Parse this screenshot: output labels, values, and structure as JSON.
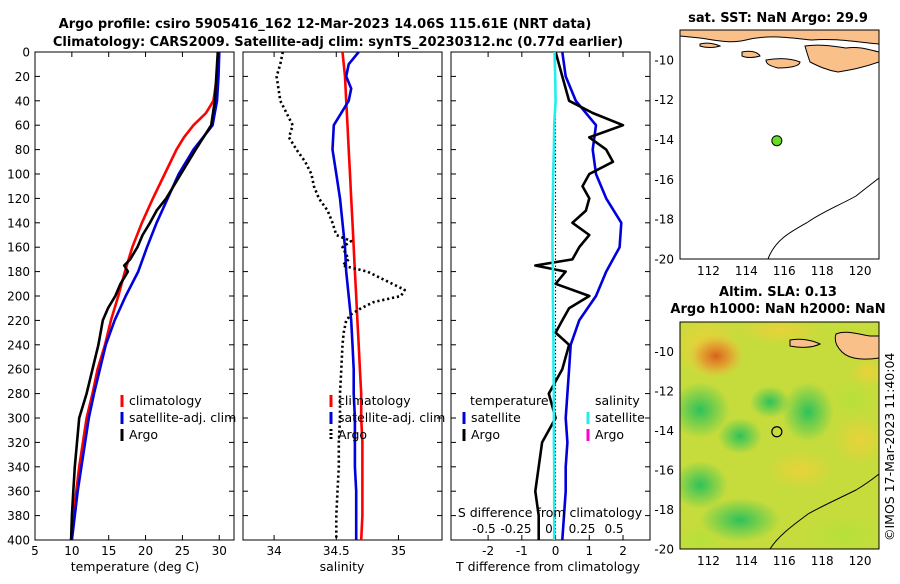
{
  "titles": {
    "line1": "Argo profile: csiro 5905416_162 12-Mar-2023 14.06S 115.61E (NRT data)",
    "line2": "Climatology: CARS2009. Satellite-adj clim: synTS_20230312.nc (0.77d earlier)"
  },
  "colors": {
    "climatology": "#ff0000",
    "satellite": "#0000dd",
    "argo": "#000000",
    "cyan": "#22eeee",
    "magenta": "#ff00cc",
    "land": "#f9c08a"
  },
  "chart_data": [
    {
      "type": "line",
      "name": "temperature",
      "xlabel": "temperature (deg C)",
      "ylabel": "",
      "xlim": [
        5,
        32
      ],
      "ylim": [
        400,
        0
      ],
      "xticks": [
        5,
        10,
        15,
        20,
        25,
        30
      ],
      "yticks": [
        0,
        20,
        40,
        60,
        80,
        100,
        120,
        140,
        160,
        180,
        200,
        220,
        240,
        260,
        280,
        300,
        320,
        340,
        360,
        380,
        400
      ],
      "legend": [
        "climatology",
        "satellite-adj. clim",
        "Argo"
      ],
      "series": [
        {
          "name": "climatology",
          "color": "red",
          "style": "solid",
          "depth": [
            0,
            20,
            40,
            50,
            60,
            70,
            80,
            100,
            120,
            140,
            160,
            180,
            200,
            220,
            240,
            260,
            280,
            300,
            320,
            340,
            360,
            380,
            400
          ],
          "values": [
            29.9,
            29.7,
            29.2,
            28.2,
            26.5,
            25.2,
            24.2,
            22.6,
            21.0,
            19.5,
            18.2,
            17.2,
            16.3,
            15.3,
            14.5,
            13.5,
            12.8,
            12.0,
            11.5,
            11.0,
            10.6,
            10.2,
            9.9
          ]
        },
        {
          "name": "satellite-adj. clim",
          "color": "blue",
          "style": "solid",
          "depth": [
            0,
            20,
            40,
            60,
            80,
            100,
            120,
            140,
            160,
            180,
            200,
            220,
            240,
            260,
            280,
            300,
            320,
            340,
            360,
            380,
            400
          ],
          "values": [
            30.0,
            29.9,
            29.7,
            29.1,
            26.5,
            24.5,
            23.0,
            21.5,
            20.2,
            19.0,
            17.3,
            15.8,
            14.6,
            13.8,
            13.0,
            12.3,
            11.8,
            11.3,
            10.8,
            10.4,
            10.0
          ]
        },
        {
          "name": "Argo",
          "color": "black",
          "style": "solid",
          "depth": [
            0,
            20,
            40,
            60,
            80,
            100,
            120,
            130,
            140,
            150,
            160,
            170,
            175,
            180,
            190,
            200,
            210,
            220,
            240,
            260,
            280,
            300,
            320,
            340,
            360,
            380,
            400
          ],
          "values": [
            29.8,
            29.6,
            29.4,
            28.9,
            26.8,
            24.8,
            22.8,
            21.5,
            20.6,
            19.6,
            18.9,
            17.9,
            17.1,
            17.6,
            16.6,
            15.9,
            14.9,
            14.2,
            13.6,
            12.8,
            12.0,
            11.0,
            10.7,
            10.4,
            10.2,
            10.0,
            9.9
          ]
        }
      ]
    },
    {
      "type": "line",
      "name": "salinity",
      "xlabel": "salinity",
      "xlim": [
        33.75,
        35.35
      ],
      "ylim": [
        400,
        0
      ],
      "xticks": [
        34,
        34.5,
        35
      ],
      "legend": [
        "climatology",
        "satellite-adj. clim",
        "Argo"
      ],
      "series": [
        {
          "name": "climatology",
          "color": "red",
          "style": "solid",
          "depth": [
            0,
            20,
            40,
            60,
            80,
            100,
            120,
            140,
            160,
            180,
            200,
            220,
            240,
            260,
            280,
            300,
            320,
            340,
            360,
            380,
            400
          ],
          "values": [
            34.55,
            34.57,
            34.58,
            34.59,
            34.6,
            34.61,
            34.62,
            34.63,
            34.64,
            34.65,
            34.66,
            34.67,
            34.68,
            34.69,
            34.7,
            34.7,
            34.71,
            34.71,
            34.71,
            34.71,
            34.7
          ]
        },
        {
          "name": "satellite-adj. clim",
          "color": "blue",
          "style": "solid",
          "depth": [
            0,
            10,
            20,
            30,
            40,
            60,
            80,
            100,
            120,
            140,
            160,
            180,
            200,
            220,
            240,
            260,
            280,
            300,
            320,
            340,
            360,
            380,
            400
          ],
          "values": [
            34.68,
            34.6,
            34.58,
            34.62,
            34.6,
            34.48,
            34.47,
            34.5,
            34.53,
            34.55,
            34.57,
            34.58,
            34.6,
            34.62,
            34.63,
            34.64,
            34.64,
            34.65,
            34.65,
            34.65,
            34.66,
            34.66,
            34.66
          ]
        },
        {
          "name": "Argo",
          "color": "black",
          "style": "dotted",
          "depth": [
            0,
            10,
            20,
            40,
            60,
            70,
            80,
            90,
            100,
            110,
            120,
            130,
            140,
            150,
            155,
            160,
            170,
            175,
            180,
            190,
            195,
            200,
            205,
            210,
            215,
            220,
            230,
            240,
            260,
            280,
            300,
            320,
            340,
            360,
            380,
            400
          ],
          "values": [
            34.07,
            34.05,
            34.02,
            34.05,
            34.15,
            34.12,
            34.18,
            34.25,
            34.3,
            34.32,
            34.36,
            34.43,
            34.47,
            34.5,
            34.62,
            34.55,
            34.6,
            34.55,
            34.75,
            34.95,
            35.05,
            35.02,
            34.8,
            34.7,
            34.62,
            34.58,
            34.56,
            34.55,
            34.54,
            34.53,
            34.53,
            34.52,
            34.52,
            34.51,
            34.5,
            34.5
          ]
        }
      ]
    },
    {
      "type": "line",
      "name": "difference",
      "xlabel": "T difference from climatology",
      "top_axis_label": "S difference from climatology",
      "xlim": [
        -3.1,
        2.8
      ],
      "ylim": [
        400,
        0
      ],
      "xticks": [
        -2,
        -1,
        0,
        1,
        2
      ],
      "top_ticks": [
        "-0.5",
        "-0.25",
        "0",
        "0.25",
        "0.5"
      ],
      "legend_temperature": [
        "temperature",
        "satellite",
        "Argo"
      ],
      "legend_salinity": [
        "salinity",
        "satellite",
        "Argo"
      ],
      "series": [
        {
          "name": "T satellite",
          "color": "blue",
          "style": "solid",
          "depth": [
            0,
            20,
            40,
            60,
            80,
            100,
            120,
            140,
            160,
            180,
            200,
            220,
            240,
            260,
            280,
            300,
            320,
            340,
            360,
            380,
            400
          ],
          "values": [
            0.2,
            0.3,
            0.6,
            1.2,
            1.1,
            1.2,
            1.5,
            1.95,
            1.9,
            1.5,
            1.2,
            0.7,
            0.45,
            0.4,
            0.35,
            0.3,
            0.35,
            0.3,
            0.3,
            0.25,
            0.2
          ]
        },
        {
          "name": "T Argo",
          "color": "black",
          "style": "solid",
          "depth": [
            0,
            20,
            40,
            50,
            60,
            70,
            80,
            90,
            100,
            110,
            120,
            130,
            140,
            150,
            160,
            170,
            175,
            180,
            190,
            200,
            210,
            220,
            230,
            240,
            260,
            280,
            300,
            320,
            340,
            360,
            380,
            400
          ],
          "values": [
            0.0,
            0.2,
            0.4,
            1.1,
            2.0,
            1.0,
            1.5,
            1.7,
            1.0,
            0.8,
            1.0,
            0.9,
            0.5,
            1.0,
            0.7,
            0.5,
            -0.6,
            0.3,
            0.0,
            1.0,
            0.4,
            0.2,
            0.0,
            0.4,
            0.2,
            -0.2,
            0.0,
            -0.4,
            -0.5,
            -0.6,
            -0.5,
            -0.5
          ]
        },
        {
          "name": "S satellite",
          "color": "cyan",
          "style": "solid",
          "depth": [
            0,
            20,
            40,
            60,
            80,
            100,
            120,
            140,
            160,
            180,
            200,
            220,
            240,
            260,
            280,
            300,
            320,
            340,
            360,
            380,
            400
          ],
          "values": [
            -0.03,
            -0.01,
            0.0,
            -0.04,
            -0.05,
            -0.07,
            -0.08,
            -0.09,
            -0.09,
            -0.08,
            -0.08,
            -0.07,
            -0.06,
            -0.06,
            -0.05,
            -0.05,
            -0.05,
            -0.04,
            -0.04,
            -0.04,
            -0.04
          ]
        }
      ]
    },
    {
      "type": "scatter",
      "name": "sat-sst-map",
      "title": "sat. SST: NaN Argo: 29.9",
      "xlim": [
        110.5,
        121
      ],
      "ylim": [
        -20,
        -8.5
      ],
      "xticks": [
        112,
        114,
        116,
        118,
        120
      ],
      "yticks": [
        -10,
        -12,
        -14,
        -16,
        -18,
        -20
      ],
      "point": {
        "lon": 115.61,
        "lat": -14.06
      }
    },
    {
      "type": "heatmap",
      "name": "sla-map",
      "title1": "Altim. SLA: 0.13",
      "title2": "Argo h1000: NaN h2000: NaN",
      "xlim": [
        110.5,
        121
      ],
      "ylim": [
        -20,
        -8.5
      ],
      "xticks": [
        112,
        114,
        116,
        118,
        120
      ],
      "yticks": [
        -10,
        -12,
        -14,
        -16,
        -18,
        -20
      ],
      "point": {
        "lon": 115.61,
        "lat": -14.06
      }
    }
  ],
  "credit": "©IMOS 17-Mar-2023 11:40:04"
}
